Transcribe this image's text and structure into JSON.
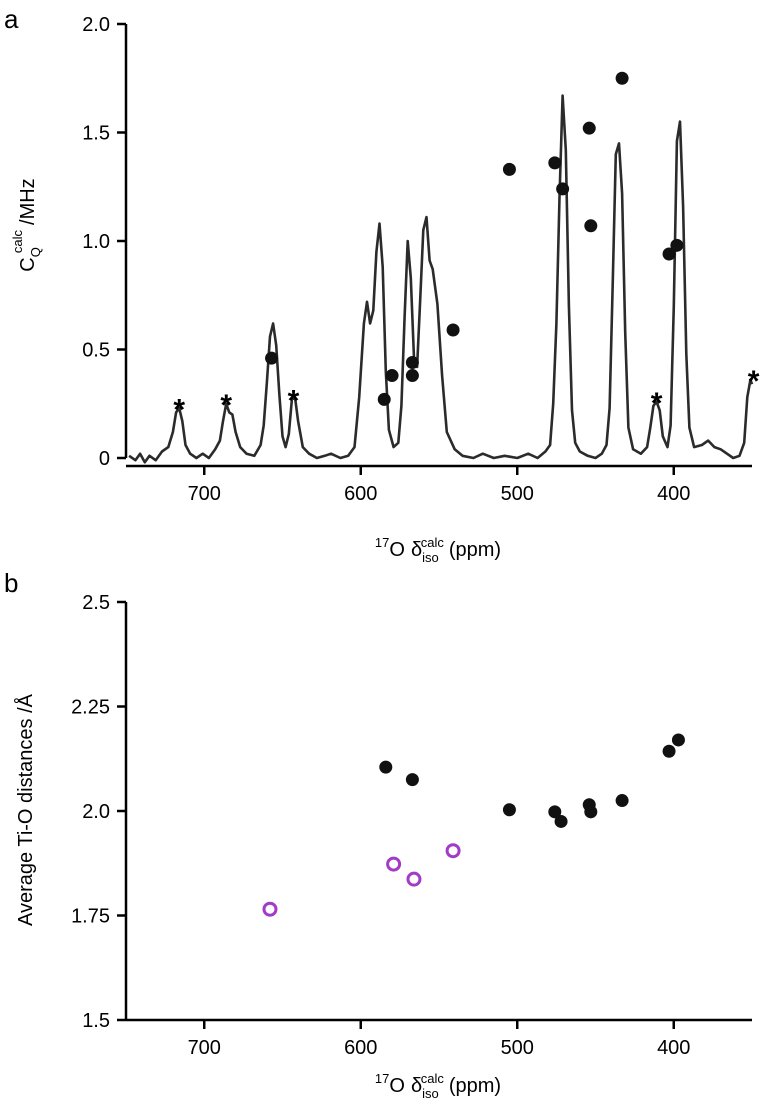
{
  "panel_labels": [
    "a",
    "b"
  ],
  "colors": {
    "axis": "#000000",
    "trace": "#2b2b2b",
    "filled_point": "#111111",
    "open_point": "#a23cc8"
  },
  "chart_data": [
    {
      "type": "line",
      "panel": "a",
      "xaxis_parts": {
        "sup_mass": "17",
        "element": "O",
        "symbol": "δ",
        "sub": "iso",
        "sup": "calc",
        "unit": "(ppm)"
      },
      "yaxis_parts": {
        "main": "C",
        "sub": "Q",
        "sup": "calc",
        "unit": "/MHz"
      },
      "xlim": [
        750,
        350
      ],
      "ylim": [
        0,
        2.0
      ],
      "x_reversed": true,
      "xticks": [
        700,
        600,
        500,
        400
      ],
      "xtick_labels": [
        "700",
        "600",
        "500",
        "400"
      ],
      "yticks": [
        0,
        0.5,
        1.0,
        1.5,
        2.0
      ],
      "ytick_labels": [
        "0",
        "0.5",
        "1.0",
        "1.5",
        "2.0"
      ],
      "grid": false,
      "series": [
        {
          "kind": "spectrum",
          "points": [
            [
              748,
              0.01
            ],
            [
              744,
              -0.01
            ],
            [
              741,
              0.02
            ],
            [
              738,
              -0.02
            ],
            [
              735,
              0.01
            ],
            [
              731,
              -0.01
            ],
            [
              727,
              0.03
            ],
            [
              723,
              0.05
            ],
            [
              720,
              0.12
            ],
            [
              718,
              0.21
            ],
            [
              716,
              0.23
            ],
            [
              714,
              0.17
            ],
            [
              712,
              0.06
            ],
            [
              709,
              0.02
            ],
            [
              705,
              0.0
            ],
            [
              701,
              0.02
            ],
            [
              697,
              0.0
            ],
            [
              693,
              0.04
            ],
            [
              690,
              0.08
            ],
            [
              688,
              0.17
            ],
            [
              686,
              0.25
            ],
            [
              684,
              0.21
            ],
            [
              682,
              0.2
            ],
            [
              680,
              0.12
            ],
            [
              677,
              0.05
            ],
            [
              673,
              0.02
            ],
            [
              668,
              0.01
            ],
            [
              664,
              0.06
            ],
            [
              662,
              0.15
            ],
            [
              660,
              0.35
            ],
            [
              658,
              0.56
            ],
            [
              656,
              0.62
            ],
            [
              654,
              0.52
            ],
            [
              652,
              0.29
            ],
            [
              650,
              0.1
            ],
            [
              648,
              0.05
            ],
            [
              646,
              0.11
            ],
            [
              644,
              0.27
            ],
            [
              642,
              0.28
            ],
            [
              640,
              0.17
            ],
            [
              637,
              0.05
            ],
            [
              633,
              0.02
            ],
            [
              628,
              0.0
            ],
            [
              623,
              0.01
            ],
            [
              619,
              0.02
            ],
            [
              613,
              0.0
            ],
            [
              608,
              0.01
            ],
            [
              604,
              0.05
            ],
            [
              601,
              0.28
            ],
            [
              598,
              0.62
            ],
            [
              596,
              0.72
            ],
            [
              594,
              0.62
            ],
            [
              592,
              0.68
            ],
            [
              590,
              0.95
            ],
            [
              588,
              1.08
            ],
            [
              586,
              0.88
            ],
            [
              584,
              0.4
            ],
            [
              582,
              0.13
            ],
            [
              579,
              0.05
            ],
            [
              576,
              0.07
            ],
            [
              574,
              0.24
            ],
            [
              572,
              0.65
            ],
            [
              570,
              1.0
            ],
            [
              568,
              0.83
            ],
            [
              566,
              0.46
            ],
            [
              564,
              0.42
            ],
            [
              562,
              0.73
            ],
            [
              560,
              1.05
            ],
            [
              558,
              1.11
            ],
            [
              556,
              0.91
            ],
            [
              554,
              0.87
            ],
            [
              551,
              0.71
            ],
            [
              548,
              0.38
            ],
            [
              545,
              0.12
            ],
            [
              540,
              0.04
            ],
            [
              535,
              0.01
            ],
            [
              528,
              0.0
            ],
            [
              522,
              0.02
            ],
            [
              515,
              0.0
            ],
            [
              508,
              0.01
            ],
            [
              500,
              0.0
            ],
            [
              493,
              0.02
            ],
            [
              487,
              0.0
            ],
            [
              482,
              0.03
            ],
            [
              479,
              0.06
            ],
            [
              477,
              0.25
            ],
            [
              475,
              0.62
            ],
            [
              473,
              1.2
            ],
            [
              471,
              1.67
            ],
            [
              469,
              1.42
            ],
            [
              467,
              0.7
            ],
            [
              465,
              0.22
            ],
            [
              463,
              0.07
            ],
            [
              460,
              0.03
            ],
            [
              455,
              0.01
            ],
            [
              450,
              0.0
            ],
            [
              446,
              0.02
            ],
            [
              443,
              0.06
            ],
            [
              441,
              0.23
            ],
            [
              439,
              0.8
            ],
            [
              437,
              1.4
            ],
            [
              435,
              1.45
            ],
            [
              433,
              1.22
            ],
            [
              431,
              0.58
            ],
            [
              429,
              0.14
            ],
            [
              426,
              0.04
            ],
            [
              421,
              0.02
            ],
            [
              417,
              0.05
            ],
            [
              415,
              0.14
            ],
            [
              413,
              0.24
            ],
            [
              411,
              0.26
            ],
            [
              409,
              0.22
            ],
            [
              407,
              0.1
            ],
            [
              404,
              0.05
            ],
            [
              402,
              0.15
            ],
            [
              400,
              0.7
            ],
            [
              398,
              1.46
            ],
            [
              396,
              1.55
            ],
            [
              394,
              1.16
            ],
            [
              392,
              0.48
            ],
            [
              390,
              0.14
            ],
            [
              387,
              0.05
            ],
            [
              382,
              0.06
            ],
            [
              378,
              0.08
            ],
            [
              374,
              0.05
            ],
            [
              370,
              0.04
            ],
            [
              366,
              0.02
            ],
            [
              362,
              0.0
            ],
            [
              358,
              0.01
            ],
            [
              355,
              0.07
            ],
            [
              353,
              0.28
            ],
            [
              351,
              0.36
            ],
            [
              350,
              0.34
            ]
          ]
        },
        {
          "kind": "filled_points",
          "points": [
            [
              657,
              0.46
            ],
            [
              585,
              0.27
            ],
            [
              580,
              0.38
            ],
            [
              567,
              0.44
            ],
            [
              567,
              0.38
            ],
            [
              541,
              0.59
            ],
            [
              505,
              1.33
            ],
            [
              476,
              1.36
            ],
            [
              471,
              1.24
            ],
            [
              454,
              1.52
            ],
            [
              453,
              1.07
            ],
            [
              433,
              1.75
            ],
            [
              403,
              0.94
            ],
            [
              398,
              0.98
            ]
          ]
        }
      ],
      "annotations": [
        {
          "text": "*",
          "x": 716,
          "y": 0.27
        },
        {
          "text": "*",
          "x": 686,
          "y": 0.29
        },
        {
          "text": "*",
          "x": 643,
          "y": 0.31
        },
        {
          "text": "*",
          "x": 411,
          "y": 0.3
        },
        {
          "text": "*",
          "x": 349,
          "y": 0.4
        }
      ]
    },
    {
      "type": "scatter",
      "panel": "b",
      "xaxis_parts": {
        "sup_mass": "17",
        "element": "O",
        "symbol": "δ",
        "sub": "iso",
        "sup": "calc",
        "unit": "(ppm)"
      },
      "ylabel": "Average Ti-O distances /Å",
      "xlim": [
        750,
        350
      ],
      "ylim": [
        1.5,
        2.5
      ],
      "x_reversed": true,
      "xticks": [
        700,
        600,
        500,
        400
      ],
      "xtick_labels": [
        "700",
        "600",
        "500",
        "400"
      ],
      "yticks": [
        1.5,
        1.75,
        2.0,
        2.25,
        2.5
      ],
      "ytick_labels": [
        "1.5",
        "1.75",
        "2.0",
        "2.25",
        "2.5"
      ],
      "grid": false,
      "series": [
        {
          "kind": "filled_points",
          "points": [
            [
              584,
              2.105
            ],
            [
              567,
              2.075
            ],
            [
              505,
              2.003
            ],
            [
              476,
              1.998
            ],
            [
              472,
              1.975
            ],
            [
              454,
              2.015
            ],
            [
              453,
              1.998
            ],
            [
              433,
              2.025
            ],
            [
              403,
              2.143
            ],
            [
              397,
              2.17
            ]
          ]
        },
        {
          "kind": "open_points",
          "points": [
            [
              658,
              1.765
            ],
            [
              579,
              1.873
            ],
            [
              566,
              1.837
            ],
            [
              541,
              1.905
            ]
          ]
        }
      ]
    }
  ]
}
